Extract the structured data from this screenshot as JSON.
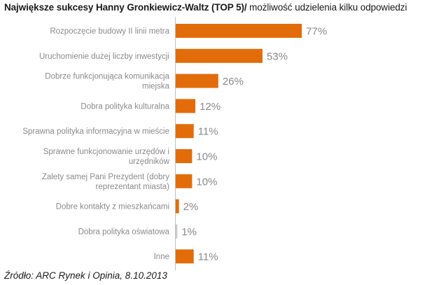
{
  "chart_data": {
    "type": "bar",
    "orientation": "horizontal",
    "title": "Największe sukcesy Hanny Gronkiewicz-Waltz (TOP 5)/",
    "subtitle": " możliwość udzielenia kilku odpowiedzi",
    "categories": [
      [
        "Rozpoczęcie budowy II linii metra"
      ],
      [
        "Uruchomienie dużej liczby inwestycji"
      ],
      [
        "Dobrze funkcjonująca komunikacja",
        "miejska"
      ],
      [
        "Dobra polityka kulturalna"
      ],
      [
        "Sprawna polityka informacyjna w mieście"
      ],
      [
        "Sprawne funkcjonowanie urzędów i",
        "urzędników"
      ],
      [
        "Zalety samej Pani Prezydent (dobry",
        "reprezentant miasta)"
      ],
      [
        "Dobre kontakty z mieszkańcami"
      ],
      [
        "Dobra polityka oświatowa"
      ],
      [
        "Inne"
      ]
    ],
    "values": [
      77,
      53,
      26,
      12,
      11,
      10,
      10,
      2,
      1,
      11
    ],
    "value_labels": [
      "77%",
      "53%",
      "26%",
      "12%",
      "11%",
      "10%",
      "10%",
      "2%",
      "1%",
      "11%"
    ],
    "colors": [
      "#e36c0a",
      "#e36c0a",
      "#e36c0a",
      "#e36c0a",
      "#e36c0a",
      "#e36c0a",
      "#e36c0a",
      "#e36c0a",
      "#c9c9c9",
      "#e36c0a"
    ],
    "axis_color": "#c0c0c0",
    "grid": false,
    "legend": "none"
  },
  "source_text": "Źródło: ARC Rynek i Opinia, 8.10.2013"
}
